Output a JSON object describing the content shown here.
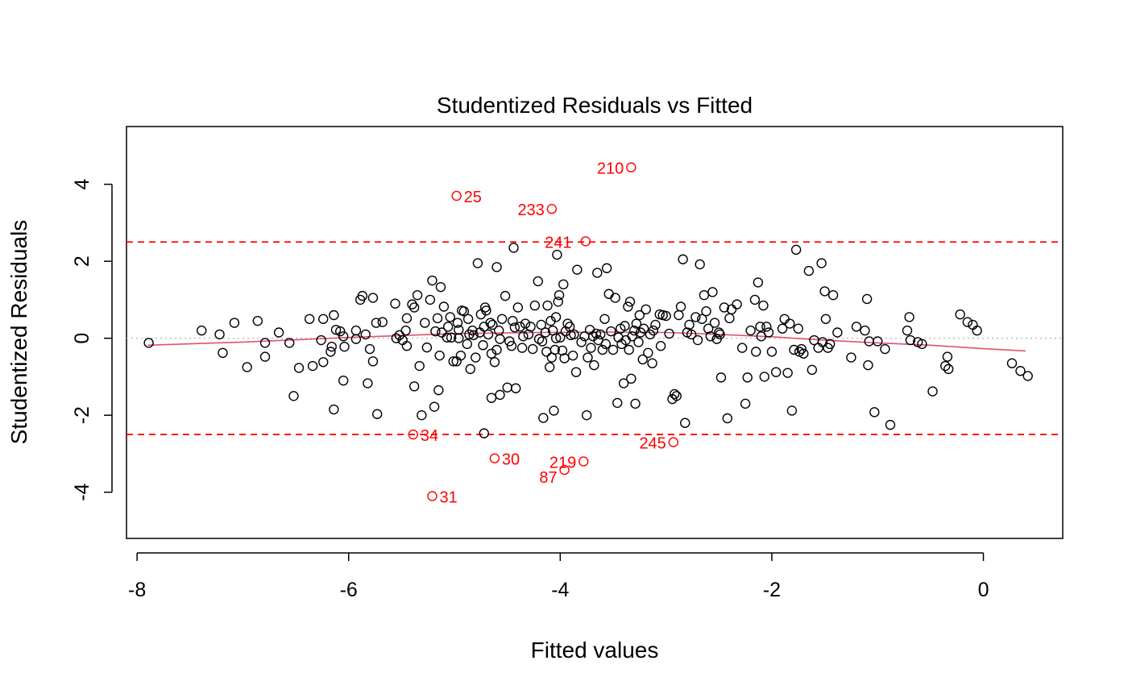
{
  "chart_data": {
    "type": "scatter",
    "title": "Studentized Residuals vs Fitted",
    "xlabel": "Fitted values",
    "ylabel": "Studentized Residuals",
    "xlim": [
      -8.1,
      0.75
    ],
    "ylim": [
      -5.2,
      5.5
    ],
    "x_ticks": [
      -8,
      -6,
      -4,
      -2,
      0
    ],
    "y_ticks": [
      -4,
      -2,
      0,
      2,
      4
    ],
    "x_tick_labels": [
      "-8",
      "-6",
      "-4",
      "-2",
      "0"
    ],
    "y_tick_labels": [
      "-4",
      "-2",
      "0",
      "2",
      "4"
    ],
    "grid": false,
    "colors": {
      "points": "#000000",
      "outliers": "#ff0000",
      "threshold_lines": "#ff0000",
      "zero_line": "#bebebe",
      "smooth": "#df536b"
    },
    "threshold_lines": [
      2.5,
      -2.5
    ],
    "zero_line": 0,
    "smooth": {
      "x": [
        -7.9,
        -7.0,
        -6.0,
        -5.0,
        -4.2,
        -3.5,
        -3.0,
        -2.5,
        -2.0,
        -1.5,
        -1.0,
        -0.5,
        0.0,
        0.4
      ],
      "y": [
        -0.18,
        -0.1,
        0.02,
        0.12,
        0.15,
        0.16,
        0.15,
        0.1,
        0.04,
        -0.05,
        -0.12,
        -0.18,
        -0.27,
        -0.33
      ]
    },
    "outliers": [
      {
        "label": "210",
        "x": -3.33,
        "y": 4.44
      },
      {
        "label": "25",
        "x": -4.98,
        "y": 3.7
      },
      {
        "label": "233",
        "x": -4.08,
        "y": 3.36
      },
      {
        "label": "241",
        "x": -3.76,
        "y": 2.52
      },
      {
        "label": "34",
        "x": -5.39,
        "y": -2.5
      },
      {
        "label": "245",
        "x": -2.93,
        "y": -2.7
      },
      {
        "label": "30",
        "x": -4.62,
        "y": -3.12
      },
      {
        "label": "219",
        "x": -3.78,
        "y": -3.2
      },
      {
        "label": "87",
        "x": -3.96,
        "y": -3.42
      },
      {
        "label": "31",
        "x": -5.21,
        "y": -4.1
      }
    ],
    "points": [
      [
        -7.89,
        -0.12
      ],
      [
        -7.39,
        0.2
      ],
      [
        -7.22,
        0.1
      ],
      [
        -7.19,
        -0.38
      ],
      [
        -7.08,
        0.4
      ],
      [
        -6.96,
        -0.75
      ],
      [
        -6.86,
        0.45
      ],
      [
        -6.79,
        -0.12
      ],
      [
        -6.79,
        -0.48
      ],
      [
        -6.66,
        0.15
      ],
      [
        -6.56,
        -0.12
      ],
      [
        -6.52,
        -1.5
      ],
      [
        -6.47,
        -0.77
      ],
      [
        -6.37,
        0.5
      ],
      [
        -6.34,
        -0.72
      ],
      [
        -6.26,
        -0.05
      ],
      [
        -6.24,
        0.5
      ],
      [
        -6.24,
        -0.62
      ],
      [
        -6.17,
        -0.35
      ],
      [
        -6.16,
        -0.22
      ],
      [
        -6.14,
        -1.85
      ],
      [
        -6.14,
        0.6
      ],
      [
        -6.12,
        0.22
      ],
      [
        -6.08,
        0.18
      ],
      [
        -6.05,
        -1.1
      ],
      [
        -6.05,
        0.05
      ],
      [
        -6.04,
        -0.22
      ],
      [
        -5.93,
        -0.02
      ],
      [
        -5.93,
        0.2
      ],
      [
        -5.89,
        1.0
      ],
      [
        -5.87,
        1.1
      ],
      [
        -5.84,
        0.1
      ],
      [
        -5.82,
        -1.17
      ],
      [
        -5.8,
        -0.28
      ],
      [
        -5.77,
        -0.6
      ],
      [
        -5.77,
        1.05
      ],
      [
        -5.74,
        0.4
      ],
      [
        -5.73,
        -1.97
      ],
      [
        -5.68,
        0.42
      ],
      [
        -5.56,
        0.9
      ],
      [
        -5.55,
        0.0
      ],
      [
        -5.52,
        0.08
      ],
      [
        -5.49,
        -0.05
      ],
      [
        -5.46,
        0.2
      ],
      [
        -5.45,
        -0.2
      ],
      [
        -5.45,
        0.52
      ],
      [
        -5.4,
        0.88
      ],
      [
        -5.38,
        0.8
      ],
      [
        -5.38,
        -1.25
      ],
      [
        -5.35,
        1.12
      ],
      [
        -5.33,
        -0.72
      ],
      [
        -5.31,
        -2.0
      ],
      [
        -5.28,
        0.4
      ],
      [
        -5.26,
        -0.24
      ],
      [
        -5.23,
        1.0
      ],
      [
        -5.21,
        1.5
      ],
      [
        -5.19,
        -1.78
      ],
      [
        -5.18,
        0.18
      ],
      [
        -5.16,
        0.52
      ],
      [
        -5.15,
        -1.35
      ],
      [
        -5.14,
        -0.45
      ],
      [
        -5.13,
        1.33
      ],
      [
        -5.12,
        0.15
      ],
      [
        -5.1,
        0.82
      ],
      [
        -5.07,
        0.02
      ],
      [
        -5.06,
        0.3
      ],
      [
        -5.04,
        0.55
      ],
      [
        -5.03,
        0.02
      ],
      [
        -5.01,
        -0.6
      ],
      [
        -4.98,
        -0.6
      ],
      [
        -4.97,
        0.4
      ],
      [
        -4.96,
        0.0
      ],
      [
        -4.96,
        0.22
      ],
      [
        -4.94,
        -0.45
      ],
      [
        -4.93,
        0.72
      ],
      [
        -4.91,
        0.7
      ],
      [
        -4.88,
        -0.15
      ],
      [
        -4.87,
        0.5
      ],
      [
        -4.86,
        0.1
      ],
      [
        -4.85,
        -0.8
      ],
      [
        -4.83,
        0.2
      ],
      [
        -4.82,
        0.08
      ],
      [
        -4.8,
        -0.5
      ],
      [
        -4.78,
        1.95
      ],
      [
        -4.76,
        0.15
      ],
      [
        -4.75,
        0.62
      ],
      [
        -4.73,
        -0.18
      ],
      [
        -4.72,
        0.3
      ],
      [
        -4.72,
        -2.47
      ],
      [
        -4.71,
        0.8
      ],
      [
        -4.7,
        0.72
      ],
      [
        -4.68,
        0.1
      ],
      [
        -4.66,
        0.4
      ],
      [
        -4.65,
        -1.55
      ],
      [
        -4.65,
        -0.4
      ],
      [
        -4.64,
        0.35
      ],
      [
        -4.62,
        -0.62
      ],
      [
        -4.6,
        -0.3
      ],
      [
        -4.6,
        1.85
      ],
      [
        -4.58,
        0.2
      ],
      [
        -4.57,
        -1.47
      ],
      [
        -4.57,
        -0.02
      ],
      [
        -4.55,
        0.5
      ],
      [
        -4.52,
        1.1
      ],
      [
        -4.5,
        -1.28
      ],
      [
        -4.48,
        -0.08
      ],
      [
        -4.46,
        -0.2
      ],
      [
        -4.45,
        0.45
      ],
      [
        -4.44,
        2.35
      ],
      [
        -4.43,
        0.28
      ],
      [
        -4.42,
        -1.3
      ],
      [
        -4.4,
        0.8
      ],
      [
        -4.38,
        0.3
      ],
      [
        -4.36,
        -0.25
      ],
      [
        -4.35,
        0.05
      ],
      [
        -4.33,
        0.38
      ],
      [
        -4.3,
        0.1
      ],
      [
        -4.28,
        0.3
      ],
      [
        -4.26,
        -0.28
      ],
      [
        -4.24,
        0.85
      ],
      [
        -4.21,
        1.48
      ],
      [
        -4.2,
        -0.02
      ],
      [
        -4.18,
        0.35
      ],
      [
        -4.17,
        -0.08
      ],
      [
        -4.16,
        -2.07
      ],
      [
        -4.14,
        0.15
      ],
      [
        -4.13,
        -0.35
      ],
      [
        -4.12,
        0.85
      ],
      [
        -4.1,
        -0.75
      ],
      [
        -4.09,
        0.45
      ],
      [
        -4.08,
        -0.5
      ],
      [
        -4.07,
        0.2
      ],
      [
        -4.06,
        -1.88
      ],
      [
        -4.05,
        -0.3
      ],
      [
        -4.04,
        0.55
      ],
      [
        -4.04,
        0.0
      ],
      [
        -4.03,
        2.17
      ],
      [
        -4.02,
        0.95
      ],
      [
        -4.01,
        1.12
      ],
      [
        -4.0,
        0.02
      ],
      [
        -3.98,
        -0.32
      ],
      [
        -3.97,
        1.4
      ],
      [
        -3.96,
        -0.52
      ],
      [
        -3.95,
        0.18
      ],
      [
        -3.93,
        0.38
      ],
      [
        -3.91,
        0.3
      ],
      [
        -3.9,
        0.08
      ],
      [
        -3.88,
        -0.45
      ],
      [
        -3.87,
        0.1
      ],
      [
        -3.85,
        -0.88
      ],
      [
        -3.84,
        1.78
      ],
      [
        -3.8,
        -0.1
      ],
      [
        -3.77,
        0.05
      ],
      [
        -3.75,
        -2.0
      ],
      [
        -3.74,
        -0.5
      ],
      [
        -3.72,
        0.22
      ],
      [
        -3.71,
        -0.25
      ],
      [
        -3.69,
        0.05
      ],
      [
        -3.68,
        -0.7
      ],
      [
        -3.66,
        0.12
      ],
      [
        -3.65,
        1.7
      ],
      [
        -3.64,
        -0.05
      ],
      [
        -3.62,
        0.1
      ],
      [
        -3.6,
        -0.3
      ],
      [
        -3.58,
        0.5
      ],
      [
        -3.57,
        -0.15
      ],
      [
        -3.56,
        1.82
      ],
      [
        -3.54,
        1.15
      ],
      [
        -3.52,
        0.18
      ],
      [
        -3.5,
        -0.3
      ],
      [
        -3.48,
        1.05
      ],
      [
        -3.46,
        -1.68
      ],
      [
        -3.45,
        0.02
      ],
      [
        -3.43,
        0.25
      ],
      [
        -3.42,
        -0.15
      ],
      [
        -3.4,
        -1.17
      ],
      [
        -3.39,
        0.32
      ],
      [
        -3.38,
        -0.05
      ],
      [
        -3.36,
        0.82
      ],
      [
        -3.35,
        -0.3
      ],
      [
        -3.34,
        0.95
      ],
      [
        -3.33,
        -1.05
      ],
      [
        -3.32,
        0.05
      ],
      [
        -3.3,
        0.2
      ],
      [
        -3.29,
        -1.7
      ],
      [
        -3.28,
        0.38
      ],
      [
        -3.26,
        -0.1
      ],
      [
        -3.25,
        0.6
      ],
      [
        -3.24,
        0.15
      ],
      [
        -3.22,
        -0.55
      ],
      [
        -3.21,
        0.25
      ],
      [
        -3.19,
        0.75
      ],
      [
        -3.17,
        -0.38
      ],
      [
        -3.15,
        0.1
      ],
      [
        -3.13,
        -0.65
      ],
      [
        -3.12,
        0.2
      ],
      [
        -3.1,
        0.35
      ],
      [
        -3.06,
        0.62
      ],
      [
        -3.05,
        -0.2
      ],
      [
        -3.03,
        0.6
      ],
      [
        -3.0,
        0.58
      ],
      [
        -2.97,
        0.12
      ],
      [
        -2.94,
        -1.58
      ],
      [
        -2.92,
        -1.45
      ],
      [
        -2.9,
        -1.5
      ],
      [
        -2.88,
        0.6
      ],
      [
        -2.86,
        0.82
      ],
      [
        -2.84,
        2.05
      ],
      [
        -2.82,
        -2.2
      ],
      [
        -2.8,
        0.15
      ],
      [
        -2.78,
        0.35
      ],
      [
        -2.76,
        0.1
      ],
      [
        -2.72,
        0.55
      ],
      [
        -2.7,
        -0.05
      ],
      [
        -2.68,
        1.92
      ],
      [
        -2.66,
        0.5
      ],
      [
        -2.64,
        1.12
      ],
      [
        -2.62,
        0.7
      ],
      [
        -2.6,
        0.25
      ],
      [
        -2.58,
        0.05
      ],
      [
        -2.56,
        1.2
      ],
      [
        -2.54,
        0.4
      ],
      [
        -2.52,
        -0.02
      ],
      [
        -2.5,
        0.15
      ],
      [
        -2.49,
        0.1
      ],
      [
        -2.48,
        -1.02
      ],
      [
        -2.45,
        0.8
      ],
      [
        -2.42,
        -2.08
      ],
      [
        -2.4,
        0.52
      ],
      [
        -2.38,
        0.75
      ],
      [
        -2.33,
        0.88
      ],
      [
        -2.28,
        -0.25
      ],
      [
        -2.25,
        -1.7
      ],
      [
        -2.23,
        -1.02
      ],
      [
        -2.2,
        0.2
      ],
      [
        -2.16,
        1.0
      ],
      [
        -2.15,
        -0.35
      ],
      [
        -2.13,
        1.45
      ],
      [
        -2.11,
        0.3
      ],
      [
        -2.1,
        0.05
      ],
      [
        -2.08,
        0.85
      ],
      [
        -2.07,
        -1.0
      ],
      [
        -2.05,
        0.3
      ],
      [
        -2.03,
        0.15
      ],
      [
        -2.0,
        -0.35
      ],
      [
        -1.96,
        -0.88
      ],
      [
        -1.9,
        0.25
      ],
      [
        -1.88,
        0.5
      ],
      [
        -1.85,
        -0.9
      ],
      [
        -1.83,
        0.38
      ],
      [
        -1.81,
        -1.88
      ],
      [
        -1.79,
        -0.3
      ],
      [
        -1.77,
        2.3
      ],
      [
        -1.75,
        0.25
      ],
      [
        -1.74,
        -0.35
      ],
      [
        -1.72,
        -0.28
      ],
      [
        -1.7,
        -0.4
      ],
      [
        -1.65,
        1.75
      ],
      [
        -1.62,
        -0.82
      ],
      [
        -1.6,
        -0.05
      ],
      [
        -1.56,
        -0.25
      ],
      [
        -1.53,
        1.95
      ],
      [
        -1.52,
        -0.1
      ],
      [
        -1.5,
        1.22
      ],
      [
        -1.49,
        0.5
      ],
      [
        -1.47,
        -0.25
      ],
      [
        -1.45,
        -0.15
      ],
      [
        -1.42,
        1.12
      ],
      [
        -1.38,
        0.15
      ],
      [
        -1.25,
        -0.5
      ],
      [
        -1.2,
        0.3
      ],
      [
        -1.12,
        0.2
      ],
      [
        -1.1,
        1.02
      ],
      [
        -1.09,
        -0.7
      ],
      [
        -1.08,
        -0.08
      ],
      [
        -1.03,
        -1.92
      ],
      [
        -1.0,
        -0.08
      ],
      [
        -0.93,
        -0.28
      ],
      [
        -0.88,
        -2.25
      ],
      [
        -0.72,
        0.2
      ],
      [
        -0.7,
        0.55
      ],
      [
        -0.69,
        -0.05
      ],
      [
        -0.62,
        -0.1
      ],
      [
        -0.58,
        -0.15
      ],
      [
        -0.48,
        -1.38
      ],
      [
        -0.36,
        -0.72
      ],
      [
        -0.34,
        -0.48
      ],
      [
        -0.33,
        -0.8
      ],
      [
        -0.22,
        0.62
      ],
      [
        -0.15,
        0.42
      ],
      [
        -0.1,
        0.35
      ],
      [
        -0.06,
        0.2
      ],
      [
        0.27,
        -0.65
      ],
      [
        0.35,
        -0.85
      ],
      [
        0.42,
        -0.98
      ]
    ]
  }
}
